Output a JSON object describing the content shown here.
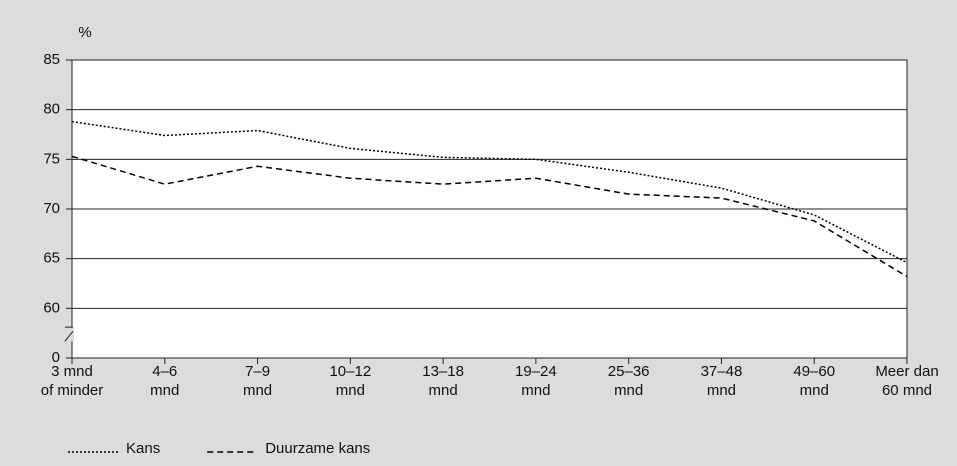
{
  "chart_data": {
    "type": "line",
    "y_label": "%",
    "categories": [
      [
        "3 mnd",
        "of minder"
      ],
      [
        "4–6",
        "mnd"
      ],
      [
        "7–9",
        "mnd"
      ],
      [
        "10–12",
        "mnd"
      ],
      [
        "13–18",
        "mnd"
      ],
      [
        "19–24",
        "mnd"
      ],
      [
        "25–36",
        "mnd"
      ],
      [
        "37–48",
        "mnd"
      ],
      [
        "49–60",
        "mnd"
      ],
      [
        "Meer dan",
        "60 mnd"
      ]
    ],
    "series": [
      {
        "name": "Kans",
        "color": "#000000",
        "dash": "dotted",
        "values": [
          78.8,
          77.4,
          77.9,
          76.1,
          75.2,
          75.0,
          73.7,
          72.1,
          69.4,
          64.6
        ]
      },
      {
        "name": "Duurzame kans",
        "color": "#000000",
        "dash": "dashed",
        "values": [
          75.3,
          72.5,
          74.3,
          73.1,
          72.5,
          73.1,
          71.5,
          71.1,
          68.8,
          63.2
        ]
      }
    ],
    "ylim": [
      0,
      85
    ],
    "yticks": [
      0,
      60,
      65,
      70,
      75,
      80,
      85
    ],
    "axis_break": true,
    "grid": true,
    "legend": "bottom"
  }
}
